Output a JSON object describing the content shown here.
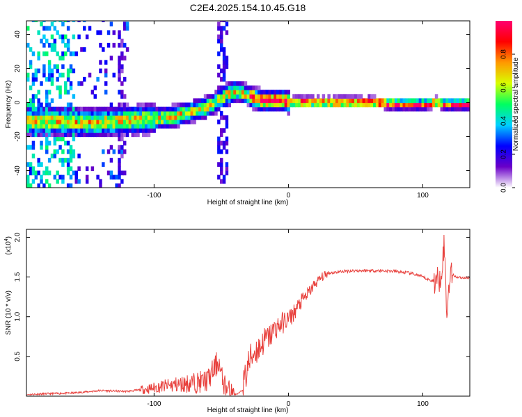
{
  "figure": {
    "title": "C2E4.2025.154.10.45.G18"
  },
  "chart_data": [
    {
      "type": "heatmap",
      "panel": "spectrogram",
      "title": "C2E4.2025.154.10.45.G18",
      "xlabel": "Height of straight line (km)",
      "ylabel": "Frequency (Hz)",
      "xlim": [
        -195,
        135
      ],
      "ylim": [
        -50,
        48
      ],
      "xticks": [
        -100,
        0,
        100
      ],
      "xtick_labels": [
        "-100",
        "0",
        "100"
      ],
      "yticks": [
        40,
        20,
        0,
        -20,
        -40
      ],
      "ytick_labels": [
        "40",
        "20",
        "0",
        "-20",
        "-40"
      ],
      "ridge": {
        "description": "frequency of the main spectral ridge vs height",
        "x": [
          -170,
          -150,
          -130,
          -110,
          -90,
          -75,
          -62,
          -55,
          -48,
          -42,
          -38,
          -34,
          -30,
          -25,
          -20,
          -15,
          -10,
          -5,
          0,
          10,
          20,
          40,
          60,
          80,
          100,
          110,
          115,
          120,
          130
        ],
        "y": [
          -12,
          -13,
          -12,
          -11,
          -10,
          -7,
          -4,
          -1,
          3,
          5,
          6,
          4,
          3,
          1,
          0,
          0,
          0,
          0,
          -1,
          -1,
          -1,
          -1,
          -1,
          -2,
          -2,
          -1,
          -2,
          -2,
          -2
        ]
      },
      "colorbar": {
        "label": "Normalized spectral amplitude",
        "ticks": [
          0.0,
          0.2,
          0.4,
          0.6,
          0.8
        ],
        "tick_labels": [
          "0.0",
          "0.2",
          "0.4",
          "0.6",
          "0.8"
        ],
        "range": [
          0,
          1
        ],
        "colors": [
          "#ffffff",
          "#6a00c8",
          "#0000ff",
          "#00d0ff",
          "#00ff60",
          "#d8ff00",
          "#ff9900",
          "#ff0000",
          "#ff0070"
        ]
      }
    },
    {
      "type": "line",
      "panel": "snr",
      "xlabel": "Height of straight line (km)",
      "ylabel": "SNR (10 * v/v)",
      "scale_label": "(x10",
      "scale_exponent": "4",
      "scale_close": ")",
      "xlim": [
        -195,
        135
      ],
      "ylim": [
        0,
        2.1
      ],
      "xticks": [
        -100,
        0,
        100
      ],
      "xtick_labels": [
        "-100",
        "0",
        "100"
      ],
      "yticks": [
        0.5,
        1.0,
        1.5,
        2.0
      ],
      "ytick_labels": [
        "0.5",
        "1.0",
        "1.5",
        "2.0"
      ],
      "color": "#e8403c",
      "series": [
        {
          "name": "SNR",
          "x": [
            -195,
            -180,
            -160,
            -140,
            -120,
            -105,
            -95,
            -85,
            -75,
            -65,
            -60,
            -55,
            -52,
            -50,
            -46,
            -42,
            -38,
            -34,
            -30,
            -26,
            -22,
            -18,
            -14,
            -10,
            -6,
            -2,
            2,
            6,
            10,
            15,
            20,
            25,
            30,
            40,
            50,
            60,
            70,
            80,
            90,
            95,
            100,
            105,
            110,
            113,
            116,
            118,
            120,
            125,
            130,
            135
          ],
          "y": [
            0.02,
            0.03,
            0.04,
            0.07,
            0.06,
            0.09,
            0.12,
            0.14,
            0.16,
            0.18,
            0.2,
            0.35,
            0.45,
            0.25,
            0.08,
            0.03,
            0.02,
            0.08,
            0.4,
            0.55,
            0.6,
            0.7,
            0.75,
            0.85,
            0.9,
            0.95,
            1.0,
            1.1,
            1.2,
            1.3,
            1.42,
            1.5,
            1.55,
            1.57,
            1.58,
            1.58,
            1.58,
            1.57,
            1.55,
            1.53,
            1.5,
            1.46,
            1.45,
            1.5,
            1.9,
            1.0,
            1.55,
            1.5,
            1.49,
            1.49
          ]
        }
      ]
    }
  ]
}
